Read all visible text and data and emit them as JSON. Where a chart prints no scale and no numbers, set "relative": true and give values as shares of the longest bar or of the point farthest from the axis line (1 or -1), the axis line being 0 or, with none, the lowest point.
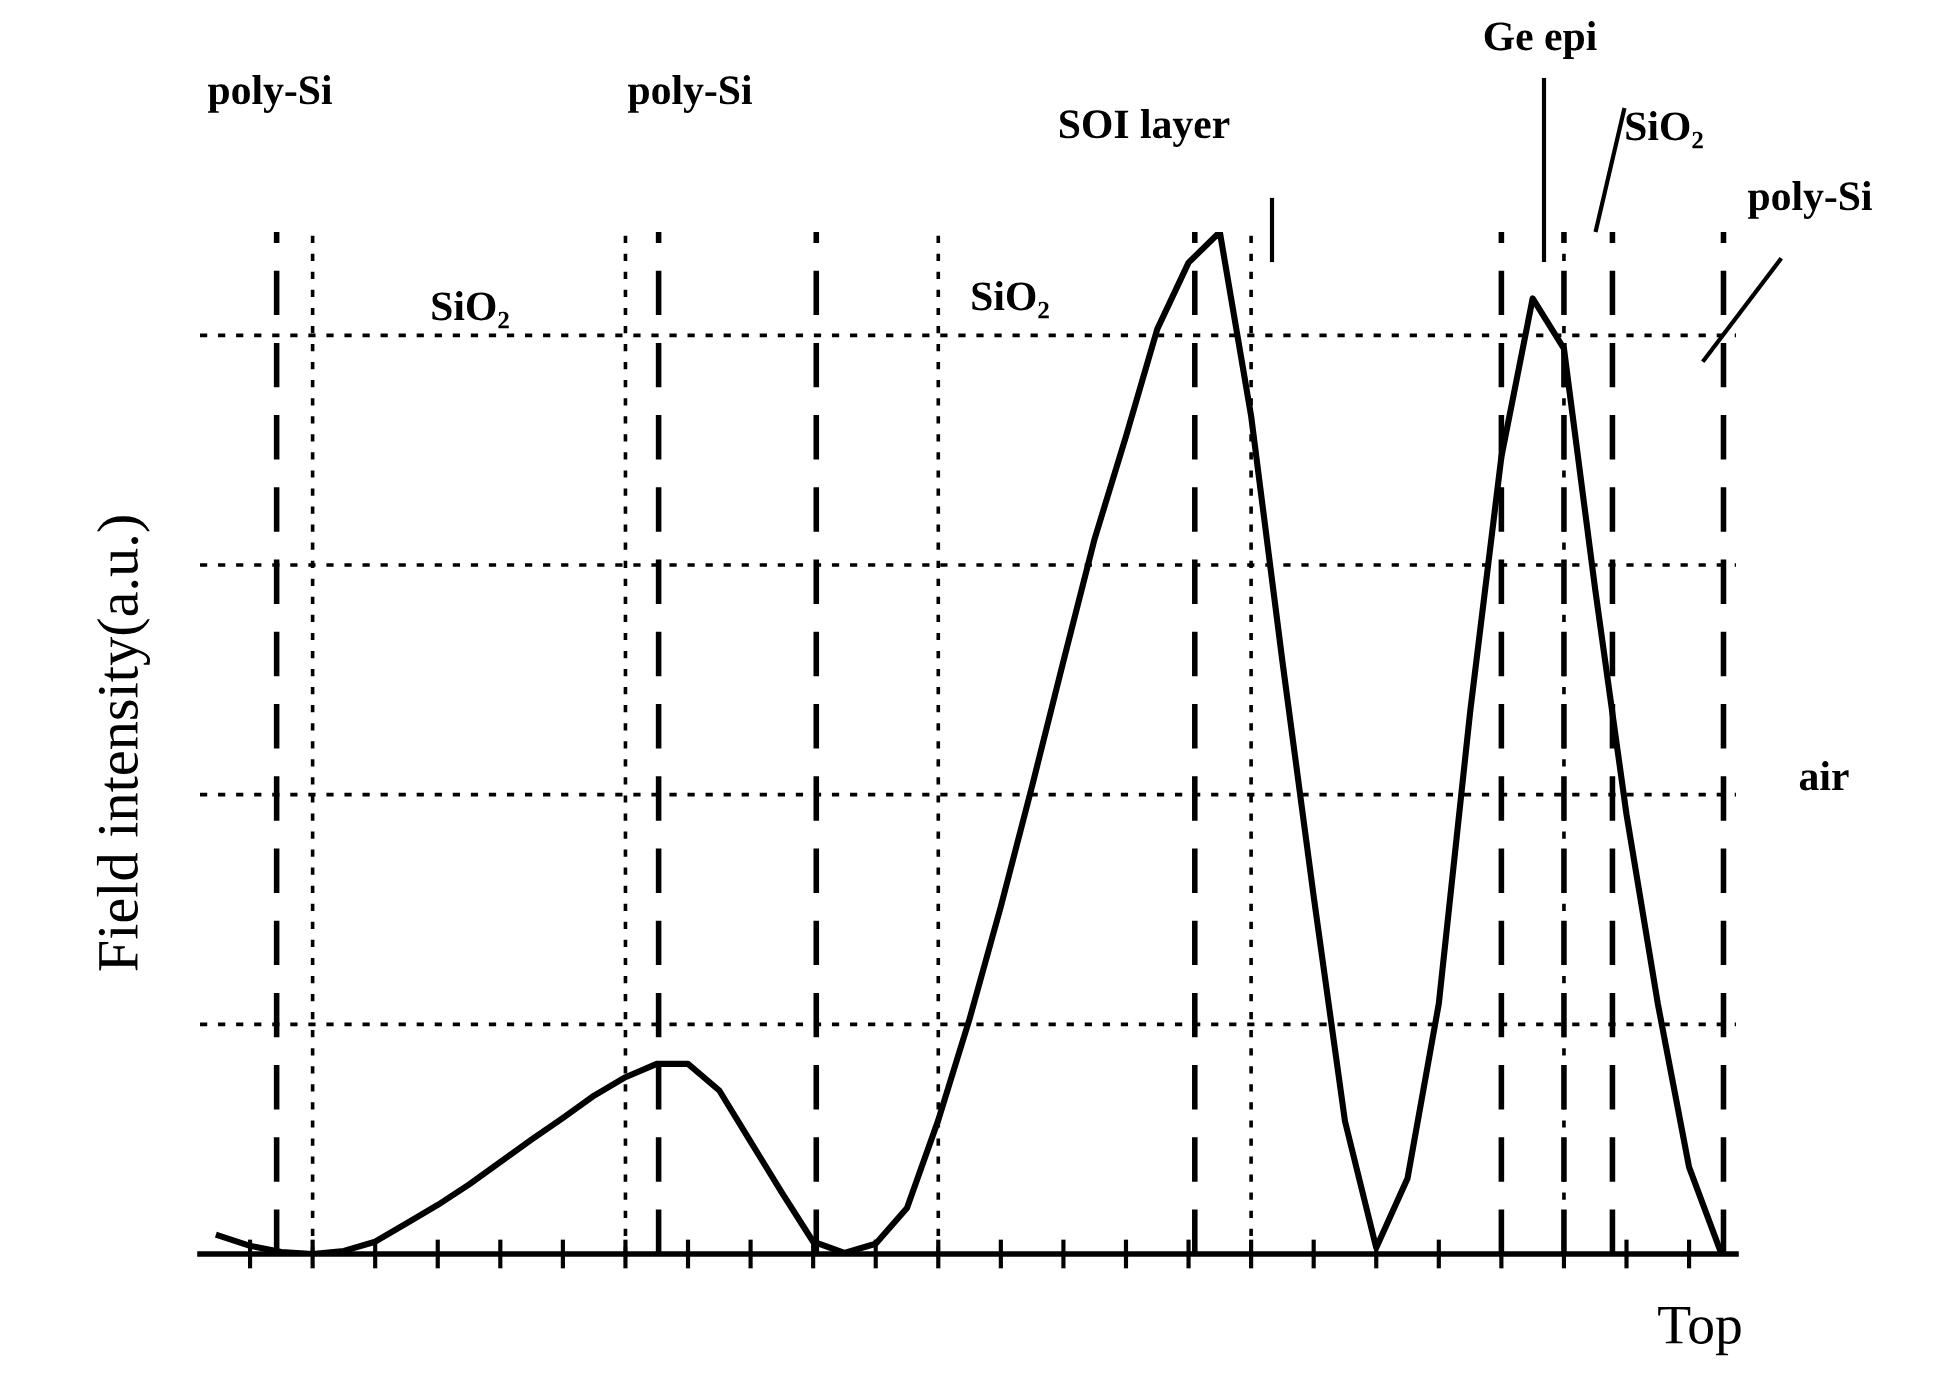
{
  "chart_data": {
    "type": "line",
    "relative": true,
    "ylabel": "Field intensity(a.u.)",
    "xlabel": "Top",
    "categories": [
      null,
      null,
      null,
      null,
      null,
      null,
      null,
      null,
      null,
      null,
      null,
      null,
      null,
      null,
      null,
      null,
      null,
      null,
      null,
      null,
      null,
      null,
      null,
      null,
      null,
      null,
      null,
      null,
      null,
      null,
      null,
      null,
      null,
      null,
      null,
      null,
      null,
      null,
      null,
      null,
      null,
      null,
      null,
      null,
      null,
      null,
      null,
      null,
      null
    ],
    "series": [
      {
        "color": "#000000",
        "values": [
          0.018,
          0.008,
          0.002,
          0,
          0.003,
          0.012,
          0.03,
          0.048,
          0.068,
          0.09,
          0.112,
          0.133,
          0.155,
          0.173,
          0.186,
          0.186,
          0.16,
          0.11,
          0.06,
          0.012,
          0.001,
          0.01,
          0.045,
          0.131,
          0.23,
          0.34,
          0.458,
          0.58,
          0.7,
          0.8,
          0.905,
          0.97,
          1.0,
          0.82,
          0.58,
          0.35,
          0.13,
          0.006,
          0.074,
          0.245,
          0.53,
          0.78,
          0.935,
          0.886,
          0.65,
          0.43,
          0.245,
          0.085,
          0.003
        ]
      }
    ],
    "grid": true,
    "marker": "none",
    "line_style": "solid",
    "annotations": [
      "poly-Si",
      "SiO₂",
      "poly-Si",
      "SiO₂",
      "SOI layer",
      "Ge epi",
      "SiO₂",
      "poly-Si",
      "air"
    ]
  }
}
